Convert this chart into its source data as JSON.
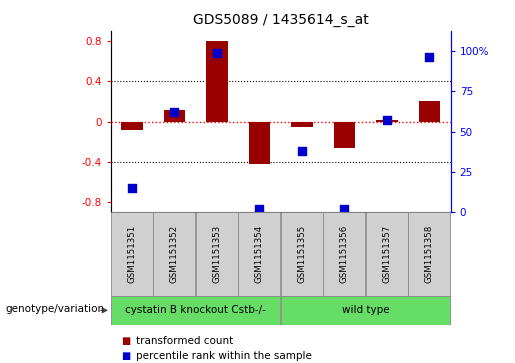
{
  "title": "GDS5089 / 1435614_s_at",
  "samples": [
    "GSM1151351",
    "GSM1151352",
    "GSM1151353",
    "GSM1151354",
    "GSM1151355",
    "GSM1151356",
    "GSM1151357",
    "GSM1151358"
  ],
  "transformed_count": [
    -0.08,
    0.12,
    0.8,
    -0.42,
    -0.05,
    -0.26,
    0.02,
    0.2
  ],
  "percentile_rank": [
    15,
    62,
    99,
    2,
    38,
    2,
    57,
    96
  ],
  "bar_color": "#990000",
  "dot_color": "#0000cc",
  "ylim_left": [
    -0.9,
    0.9
  ],
  "ylim_right": [
    0,
    112.5
  ],
  "yticks_left": [
    -0.8,
    -0.4,
    0.0,
    0.4,
    0.8
  ],
  "yticks_right": [
    0,
    25,
    50,
    75,
    100
  ],
  "ytick_labels_left": [
    "-0.8",
    "-0.4",
    "0",
    "0.4",
    "0.8"
  ],
  "ytick_labels_right": [
    "0",
    "25",
    "50",
    "75",
    "100%"
  ],
  "hlines": [
    0.4,
    -0.4
  ],
  "zero_line": 0.0,
  "group1_label": "cystatin B knockout Cstb-/-",
  "group2_label": "wild type",
  "group1_indices": [
    0,
    1,
    2,
    3
  ],
  "group2_indices": [
    4,
    5,
    6,
    7
  ],
  "group_color": "#66dd66",
  "genotype_label": "genotype/variation",
  "legend_bar_label": "transformed count",
  "legend_dot_label": "percentile rank within the sample",
  "bar_width": 0.5,
  "dot_size": 30,
  "sample_box_color": "#d0d0d0",
  "sample_box_edge": "#888888"
}
